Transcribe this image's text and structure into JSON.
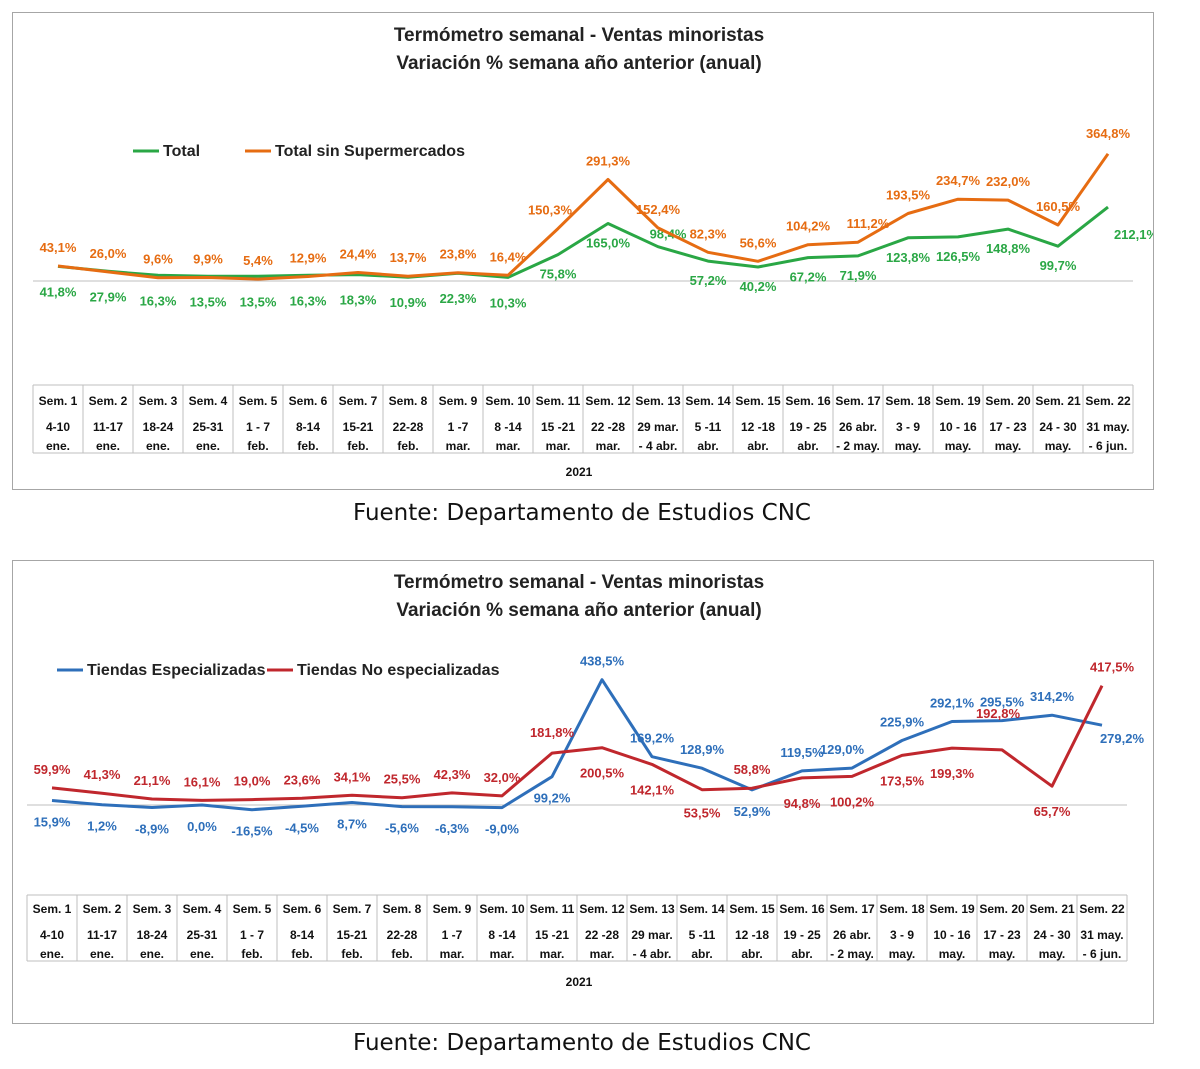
{
  "charts": [
    {
      "title_line1": "Termómetro semanal - Ventas minoristas",
      "title_line2": "Variación % semana año anterior (anual)",
      "source": "Fuente: Departamento de Estudios CNC",
      "year_label": "2021"
    },
    {
      "title_line1": "Termómetro semanal - Ventas minoristas",
      "title_line2": "Variación % semana año anterior (anual)",
      "source": "Fuente: Departamento de Estudios CNC",
      "year_label": "2021"
    }
  ],
  "chart_data": [
    {
      "type": "line",
      "title": "Termómetro semanal - Ventas minoristas / Variación % semana año anterior (anual)",
      "legend_position": "top-left",
      "grid": false,
      "weeks": [
        "Sem. 1",
        "Sem. 2",
        "Sem. 3",
        "Sem. 4",
        "Sem. 5",
        "Sem. 6",
        "Sem. 7",
        "Sem. 8",
        "Sem. 9",
        "Sem. 10",
        "Sem. 11",
        "Sem. 12",
        "Sem. 13",
        "Sem. 14",
        "Sem. 15",
        "Sem. 16",
        "Sem. 17",
        "Sem. 18",
        "Sem. 19",
        "Sem. 20",
        "Sem. 21",
        "Sem. 22"
      ],
      "dates": [
        [
          "4-10",
          "ene."
        ],
        [
          "11-17",
          "ene."
        ],
        [
          "18-24",
          "ene."
        ],
        [
          "25-31",
          "ene."
        ],
        [
          "1 - 7",
          "feb."
        ],
        [
          "8-14",
          "feb."
        ],
        [
          "15-21",
          "feb."
        ],
        [
          "22-28",
          "feb."
        ],
        [
          "1 -7",
          "mar."
        ],
        [
          "8 -14",
          "mar."
        ],
        [
          "15 -21",
          "mar."
        ],
        [
          "22 -28",
          "mar."
        ],
        [
          "29 mar.",
          "- 4 abr."
        ],
        [
          "5 -11",
          "abr."
        ],
        [
          "12 -18",
          "abr."
        ],
        [
          "19 - 25",
          "abr."
        ],
        [
          "26 abr.",
          "- 2 may."
        ],
        [
          "3 - 9",
          "may."
        ],
        [
          "10 - 16",
          "may."
        ],
        [
          "17 - 23",
          "may."
        ],
        [
          "24 - 30",
          "may."
        ],
        [
          "31 may.",
          "- 6 jun."
        ]
      ],
      "ylim": [
        -150,
        400
      ],
      "series": [
        {
          "name": "Total",
          "color": "#2aa745",
          "values": [
            41.8,
            27.9,
            16.3,
            13.5,
            13.5,
            16.3,
            18.3,
            10.9,
            22.3,
            10.3,
            75.8,
            165.0,
            98.4,
            57.2,
            40.2,
            67.2,
            71.9,
            123.8,
            126.5,
            148.8,
            99.7,
            212.1
          ],
          "labels": [
            "41,8%",
            "27,9%",
            "16,3%",
            "13,5%",
            "13,5%",
            "16,3%",
            "18,3%",
            "10,9%",
            "22,3%",
            "10,3%",
            "75,8%",
            "165,0%",
            "98,4%",
            "57,2%",
            "40,2%",
            "67,2%",
            "71,9%",
            "123,8%",
            "126,5%",
            "148,8%",
            "99,7%",
            "212,1%"
          ]
        },
        {
          "name": "Total sin Supermercados",
          "color": "#e66c12",
          "values": [
            43.1,
            26.0,
            9.6,
            9.9,
            5.4,
            12.9,
            24.4,
            13.7,
            23.8,
            16.4,
            150.3,
            291.3,
            152.4,
            82.3,
            56.6,
            104.2,
            111.2,
            193.5,
            234.7,
            232.0,
            160.5,
            364.8
          ],
          "labels": [
            "43,1%",
            "26,0%",
            "9,6%",
            "9,9%",
            "5,4%",
            "12,9%",
            "24,4%",
            "13,7%",
            "23,8%",
            "16,4%",
            "150,3%",
            "291,3%",
            "152,4%",
            "82,3%",
            "56,6%",
            "104,2%",
            "111,2%",
            "193,5%",
            "234,7%",
            "232,0%",
            "160,5%",
            "364,8%"
          ]
        }
      ]
    },
    {
      "type": "line",
      "title": "Termómetro semanal - Ventas minoristas / Variación % semana año anterior (anual)",
      "legend_position": "top-left",
      "grid": false,
      "weeks": [
        "Sem. 1",
        "Sem. 2",
        "Sem. 3",
        "Sem. 4",
        "Sem. 5",
        "Sem. 6",
        "Sem. 7",
        "Sem. 8",
        "Sem. 9",
        "Sem. 10",
        "Sem. 11",
        "Sem. 12",
        "Sem. 13",
        "Sem. 14",
        "Sem. 15",
        "Sem. 16",
        "Sem. 17",
        "Sem. 18",
        "Sem. 19",
        "Sem. 20",
        "Sem. 21",
        "Sem. 22"
      ],
      "dates": [
        [
          "4-10",
          "ene."
        ],
        [
          "11-17",
          "ene."
        ],
        [
          "18-24",
          "ene."
        ],
        [
          "25-31",
          "ene."
        ],
        [
          "1 - 7",
          "feb."
        ],
        [
          "8-14",
          "feb."
        ],
        [
          "15-21",
          "feb."
        ],
        [
          "22-28",
          "feb."
        ],
        [
          "1 -7",
          "mar."
        ],
        [
          "8 -14",
          "mar."
        ],
        [
          "15 -21",
          "mar."
        ],
        [
          "22 -28",
          "mar."
        ],
        [
          "29 mar.",
          "- 4 abr."
        ],
        [
          "5 -11",
          "abr."
        ],
        [
          "12 -18",
          "abr."
        ],
        [
          "19 - 25",
          "abr."
        ],
        [
          "26 abr.",
          "- 2 may."
        ],
        [
          "3 - 9",
          "may."
        ],
        [
          "10 - 16",
          "may."
        ],
        [
          "17 - 23",
          "may."
        ],
        [
          "24 - 30",
          "may."
        ],
        [
          "31 may.",
          "- 6 jun."
        ]
      ],
      "ylim": [
        -150,
        500
      ],
      "series": [
        {
          "name": "Tiendas Especializadas",
          "color": "#2e6fba",
          "values": [
            15.9,
            1.2,
            -8.9,
            0.0,
            -16.5,
            -4.5,
            8.7,
            -5.6,
            -6.3,
            -9.0,
            99.2,
            438.5,
            169.2,
            128.9,
            52.9,
            119.5,
            129.0,
            225.9,
            292.1,
            295.5,
            314.2,
            279.2
          ],
          "labels": [
            "15,9%",
            "1,2%",
            "-8,9%",
            "0,0%",
            "-16,5%",
            "-4,5%",
            "8,7%",
            "-5,6%",
            "-6,3%",
            "-9,0%",
            "99,2%",
            "438,5%",
            "169,2%",
            "128,9%",
            "52,9%",
            "119,5%",
            "129,0%",
            "225,9%",
            "292,1%",
            "295,5%",
            "314,2%",
            "279,2%"
          ]
        },
        {
          "name": "Tiendas No especializadas",
          "color": "#c0272d",
          "values": [
            59.9,
            41.3,
            21.1,
            16.1,
            19.0,
            23.6,
            34.1,
            25.5,
            42.3,
            32.0,
            181.8,
            200.5,
            142.1,
            53.5,
            58.8,
            94.8,
            100.2,
            173.5,
            199.3,
            192.8,
            65.7,
            417.5
          ],
          "labels": [
            "59,9%",
            "41,3%",
            "21,1%",
            "16,1%",
            "19,0%",
            "23,6%",
            "34,1%",
            "25,5%",
            "42,3%",
            "32,0%",
            "181,8%",
            "200,5%",
            "142,1%",
            "53,5%",
            "58,8%",
            "94,8%",
            "100,2%",
            "173,5%",
            "199,3%",
            "192,8%",
            "65,7%",
            "417,5%"
          ]
        }
      ]
    }
  ]
}
